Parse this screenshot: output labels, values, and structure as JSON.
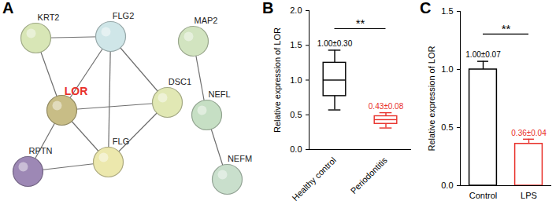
{
  "chart_data": [
    {
      "type": "network",
      "panel": "A",
      "nodes": [
        {
          "label": "KRT2",
          "color": "#d8e6b6"
        },
        {
          "label": "FLG2",
          "color": "#cfe6e8"
        },
        {
          "label": "LOR",
          "color": "#c8bd86",
          "label_color": "#e8302a"
        },
        {
          "label": "DSC1",
          "color": "#e1e8b4"
        },
        {
          "label": "RPTN",
          "color": "#9d88b5"
        },
        {
          "label": "FLG",
          "color": "#ece8ad"
        },
        {
          "label": "MAP2",
          "color": "#d2e4c0"
        },
        {
          "label": "NEFL",
          "color": "#c6dfc4"
        },
        {
          "label": "NEFM",
          "color": "#c9dfcc"
        }
      ],
      "edges": [
        [
          0,
          1
        ],
        [
          0,
          2
        ],
        [
          1,
          2
        ],
        [
          1,
          3
        ],
        [
          1,
          5
        ],
        [
          2,
          3
        ],
        [
          2,
          5
        ],
        [
          2,
          4
        ],
        [
          4,
          5
        ],
        [
          3,
          5
        ],
        [
          6,
          7
        ],
        [
          7,
          8
        ]
      ]
    },
    {
      "type": "box",
      "panel": "B",
      "y_label": "Relative expression of LOR",
      "categories": [
        "Healthy control",
        "Periodontitis"
      ],
      "colors": [
        "#000000",
        "#e8302a"
      ],
      "min": [
        0.57,
        0.31
      ],
      "q1": [
        0.77,
        0.37
      ],
      "median": [
        1.0,
        0.43
      ],
      "q3": [
        1.25,
        0.48
      ],
      "max": [
        1.43,
        0.53
      ],
      "value_labels": [
        "1.00±0.30",
        "0.43±0.08"
      ],
      "annotation": "**",
      "ylim": [
        0,
        2
      ],
      "yticks": [
        {
          "value": 0,
          "label": "0.0"
        },
        {
          "value": 0.5,
          "label": "0.5"
        },
        {
          "value": 1,
          "label": "1.0"
        },
        {
          "value": 1.5,
          "label": "1.5"
        },
        {
          "value": 2,
          "label": "2.0"
        }
      ]
    },
    {
      "type": "bar",
      "panel": "C",
      "y_label": "Relative expression of LOR",
      "categories": [
        "Control",
        "LPS"
      ],
      "colors": [
        "#000000",
        "#e8302a"
      ],
      "values": [
        1.0,
        0.36
      ],
      "errors": [
        0.07,
        0.04
      ],
      "data_labels": true,
      "value_labels": [
        "1.00±0.07",
        "0.36±0.04"
      ],
      "annotation": "**",
      "ylim": [
        0,
        1.5
      ],
      "yticks": [
        {
          "value": 0,
          "label": "0.0"
        },
        {
          "value": 0.5,
          "label": "0.5"
        },
        {
          "value": 1,
          "label": "1.0"
        },
        {
          "value": 1.5,
          "label": "1.5"
        }
      ]
    }
  ]
}
